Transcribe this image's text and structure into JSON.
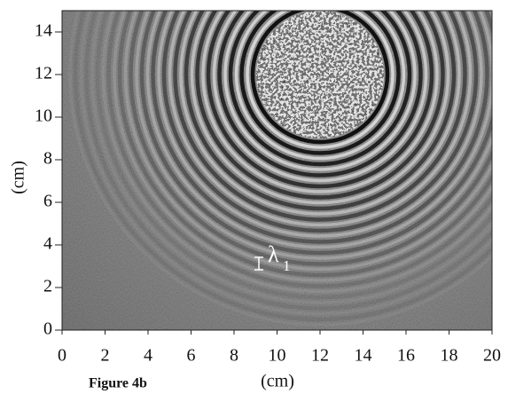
{
  "chart_data": {
    "type": "image",
    "caption": "Figure 4b",
    "x_label": "(cm)",
    "y_label": "(cm)",
    "xlim": [
      0,
      20
    ],
    "ylim": [
      0,
      15
    ],
    "xticks": [
      0,
      2,
      4,
      6,
      8,
      10,
      12,
      14,
      16,
      18,
      20
    ],
    "yticks": [
      0,
      2,
      4,
      6,
      8,
      10,
      12,
      14
    ],
    "annotation": {
      "symbol": "λ",
      "subscript": "1"
    }
  }
}
